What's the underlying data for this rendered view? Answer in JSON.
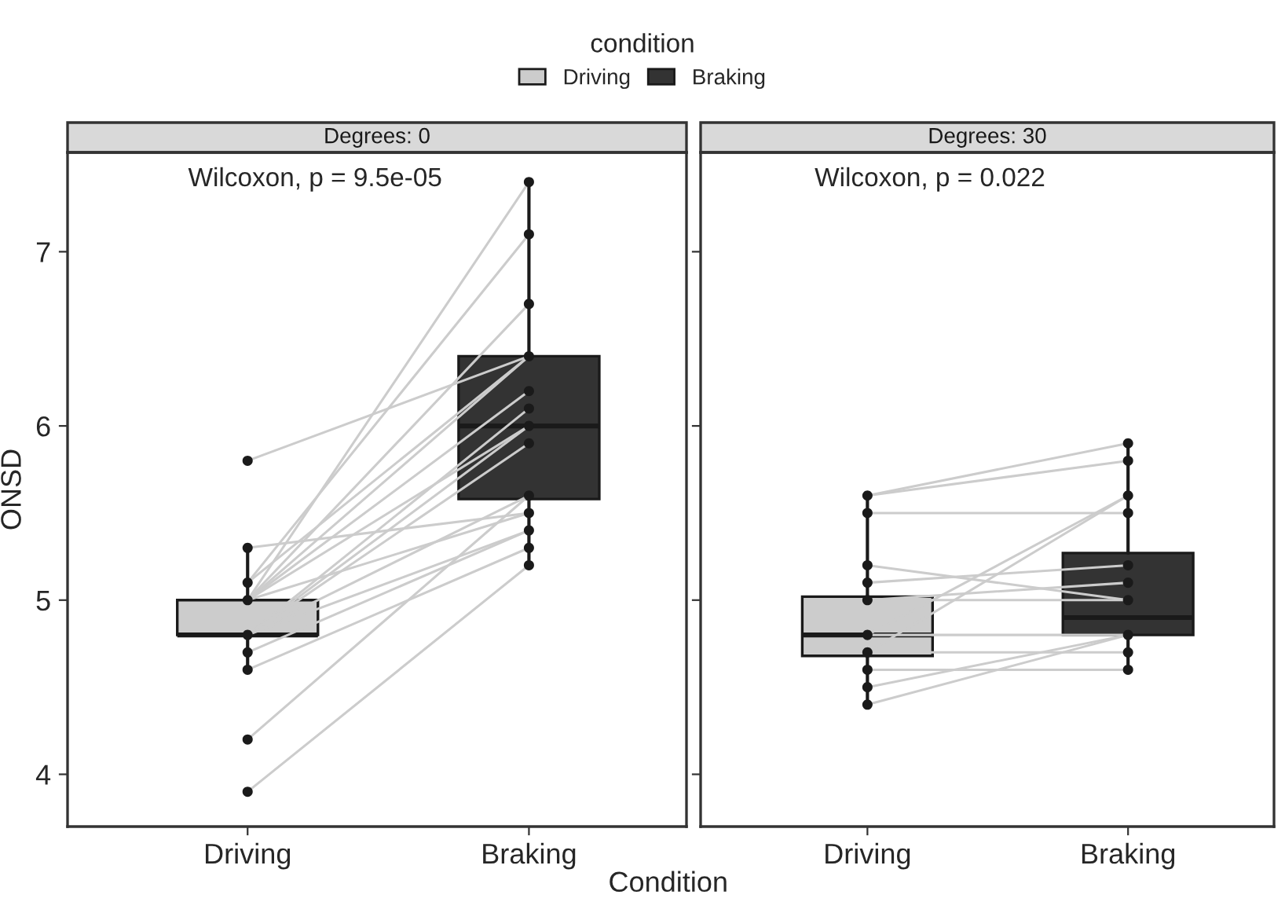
{
  "chart_data": [
    {
      "type": "box",
      "title": "Degrees: 0",
      "xlabel": "Condition",
      "ylabel": "ONSD",
      "legend_title": "condition",
      "legend": "top",
      "grid": false,
      "categories": [
        "Driving",
        "Braking"
      ],
      "ylim": [
        3.7,
        7.57
      ],
      "yticks": [
        4,
        5,
        6,
        7
      ],
      "annotations": [
        "Wilcoxon, p = 9.5e-05"
      ],
      "series": [
        {
          "type": "box",
          "name": "Driving",
          "color": "#cccccc",
          "boxes": [
            {
              "low": 4.6,
              "q1": 4.8,
              "median": 4.8,
              "q3": 5.0,
              "high": 5.3
            },
            null
          ]
        },
        {
          "type": "box",
          "name": "Braking",
          "color": "#333333",
          "boxes": [
            null,
            {
              "low": 5.2,
              "q1": 5.58,
              "median": 6.0,
              "q3": 6.4,
              "high": 7.4
            }
          ]
        },
        {
          "type": "line",
          "color": "#cccccc",
          "x": [
            "Driving",
            "Braking"
          ],
          "values": [
            5.8,
            6.4
          ]
        },
        {
          "type": "line",
          "color": "#cccccc",
          "x": [
            "Driving",
            "Braking"
          ],
          "values": [
            3.9,
            5.2
          ]
        },
        {
          "type": "line",
          "color": "#cccccc",
          "x": [
            "Driving",
            "Braking"
          ],
          "values": [
            4.2,
            5.6
          ]
        },
        {
          "type": "line",
          "color": "#cccccc",
          "x": [
            "Driving",
            "Braking"
          ],
          "values": [
            4.6,
            5.3
          ]
        },
        {
          "type": "line",
          "color": "#cccccc",
          "x": [
            "Driving",
            "Braking"
          ],
          "values": [
            4.7,
            5.4
          ]
        },
        {
          "type": "line",
          "color": "#cccccc",
          "x": [
            "Driving",
            "Braking"
          ],
          "values": [
            5.3,
            5.5
          ]
        },
        {
          "type": "line",
          "color": "#cccccc",
          "x": [
            "Driving",
            "Braking"
          ],
          "values": [
            4.8,
            5.4
          ]
        },
        {
          "type": "line",
          "color": "#cccccc",
          "x": [
            "Driving",
            "Braking"
          ],
          "values": [
            5.1,
            7.1
          ]
        },
        {
          "type": "line",
          "color": "#cccccc",
          "x": [
            "Driving",
            "Braking"
          ],
          "values": [
            5.0,
            7.4
          ]
        },
        {
          "type": "line",
          "color": "#cccccc",
          "x": [
            "Driving",
            "Braking"
          ],
          "values": [
            5.0,
            6.7
          ]
        },
        {
          "type": "line",
          "color": "#cccccc",
          "x": [
            "Driving",
            "Braking"
          ],
          "values": [
            5.0,
            6.4
          ]
        },
        {
          "type": "line",
          "color": "#cccccc",
          "x": [
            "Driving",
            "Braking"
          ],
          "values": [
            5.0,
            6.2
          ]
        },
        {
          "type": "line",
          "color": "#cccccc",
          "x": [
            "Driving",
            "Braking"
          ],
          "values": [
            4.8,
            6.1
          ]
        },
        {
          "type": "line",
          "color": "#cccccc",
          "x": [
            "Driving",
            "Braking"
          ],
          "values": [
            4.8,
            6.0
          ]
        },
        {
          "type": "line",
          "color": "#cccccc",
          "x": [
            "Driving",
            "Braking"
          ],
          "values": [
            4.8,
            5.9
          ]
        },
        {
          "type": "line",
          "color": "#cccccc",
          "x": [
            "Driving",
            "Braking"
          ],
          "values": [
            5.1,
            6.4
          ]
        },
        {
          "type": "line",
          "color": "#cccccc",
          "x": [
            "Driving",
            "Braking"
          ],
          "values": [
            5.0,
            5.5
          ]
        },
        {
          "type": "line",
          "color": "#cccccc",
          "x": [
            "Driving",
            "Braking"
          ],
          "values": [
            4.8,
            5.6
          ]
        },
        {
          "type": "line",
          "color": "#cccccc",
          "x": [
            "Driving",
            "Braking"
          ],
          "values": [
            5.0,
            6.0
          ]
        },
        {
          "type": "scatter",
          "color": "#1a1a1a",
          "x": [
            "Driving",
            "Driving",
            "Driving",
            "Driving",
            "Driving",
            "Driving",
            "Driving",
            "Driving",
            "Driving",
            "Braking",
            "Braking",
            "Braking",
            "Braking",
            "Braking",
            "Braking",
            "Braking",
            "Braking",
            "Braking",
            "Braking",
            "Braking",
            "Braking",
            "Braking"
          ],
          "values": [
            5.8,
            5.3,
            5.1,
            5.0,
            4.8,
            4.7,
            4.6,
            4.2,
            3.9,
            7.4,
            7.1,
            6.7,
            6.4,
            6.2,
            6.1,
            6.0,
            5.9,
            5.6,
            5.5,
            5.4,
            5.3,
            5.2
          ]
        }
      ]
    },
    {
      "type": "box",
      "title": "Degrees: 30",
      "tick_labels": "x",
      "grid": false,
      "categories": [
        "Driving",
        "Braking"
      ],
      "ylim": [
        3.7,
        7.57
      ],
      "yticks": [
        4,
        5,
        6,
        7
      ],
      "annotations": [
        "Wilcoxon, p = 0.022"
      ],
      "series": [
        {
          "type": "box",
          "color": "#cccccc",
          "boxes": [
            {
              "low": 4.4,
              "q1": 4.68,
              "median": 4.8,
              "q3": 5.02,
              "high": 5.6
            },
            null
          ]
        },
        {
          "type": "box",
          "color": "#333333",
          "boxes": [
            null,
            {
              "low": 4.6,
              "q1": 4.8,
              "median": 4.9,
              "q3": 5.27,
              "high": 5.9
            }
          ]
        },
        {
          "type": "line",
          "color": "#cccccc",
          "x": [
            "Driving",
            "Braking"
          ],
          "values": [
            5.6,
            5.9
          ]
        },
        {
          "type": "line",
          "color": "#cccccc",
          "x": [
            "Driving",
            "Braking"
          ],
          "values": [
            5.6,
            5.8
          ]
        },
        {
          "type": "line",
          "color": "#cccccc",
          "x": [
            "Driving",
            "Braking"
          ],
          "values": [
            5.5,
            5.5
          ]
        },
        {
          "type": "line",
          "color": "#cccccc",
          "x": [
            "Driving",
            "Braking"
          ],
          "values": [
            5.2,
            5.0
          ]
        },
        {
          "type": "line",
          "color": "#cccccc",
          "x": [
            "Driving",
            "Braking"
          ],
          "values": [
            5.1,
            5.2
          ]
        },
        {
          "type": "line",
          "color": "#cccccc",
          "x": [
            "Driving",
            "Braking"
          ],
          "values": [
            5.0,
            5.0
          ]
        },
        {
          "type": "line",
          "color": "#cccccc",
          "x": [
            "Driving",
            "Braking"
          ],
          "values": [
            5.0,
            5.1
          ]
        },
        {
          "type": "line",
          "color": "#cccccc",
          "x": [
            "Driving",
            "Braking"
          ],
          "values": [
            4.8,
            5.6
          ]
        },
        {
          "type": "line",
          "color": "#cccccc",
          "x": [
            "Driving",
            "Braking"
          ],
          "values": [
            4.7,
            5.6
          ]
        },
        {
          "type": "line",
          "color": "#cccccc",
          "x": [
            "Driving",
            "Braking"
          ],
          "values": [
            4.8,
            4.8
          ]
        },
        {
          "type": "line",
          "color": "#cccccc",
          "x": [
            "Driving",
            "Braking"
          ],
          "values": [
            4.7,
            4.7
          ]
        },
        {
          "type": "line",
          "color": "#cccccc",
          "x": [
            "Driving",
            "Braking"
          ],
          "values": [
            4.6,
            4.6
          ]
        },
        {
          "type": "line",
          "color": "#cccccc",
          "x": [
            "Driving",
            "Braking"
          ],
          "values": [
            4.5,
            4.8
          ]
        },
        {
          "type": "line",
          "color": "#cccccc",
          "x": [
            "Driving",
            "Braking"
          ],
          "values": [
            4.4,
            4.8
          ]
        },
        {
          "type": "scatter",
          "color": "#1a1a1a",
          "x": [
            "Driving",
            "Driving",
            "Driving",
            "Driving",
            "Driving",
            "Driving",
            "Driving",
            "Driving",
            "Driving",
            "Driving",
            "Braking",
            "Braking",
            "Braking",
            "Braking",
            "Braking",
            "Braking",
            "Braking",
            "Braking",
            "Braking",
            "Braking"
          ],
          "values": [
            5.6,
            5.5,
            5.2,
            5.1,
            5.0,
            4.8,
            4.7,
            4.6,
            4.5,
            4.4,
            5.9,
            5.8,
            5.6,
            5.5,
            5.2,
            5.1,
            5.0,
            4.8,
            4.7,
            4.6
          ]
        }
      ]
    }
  ]
}
